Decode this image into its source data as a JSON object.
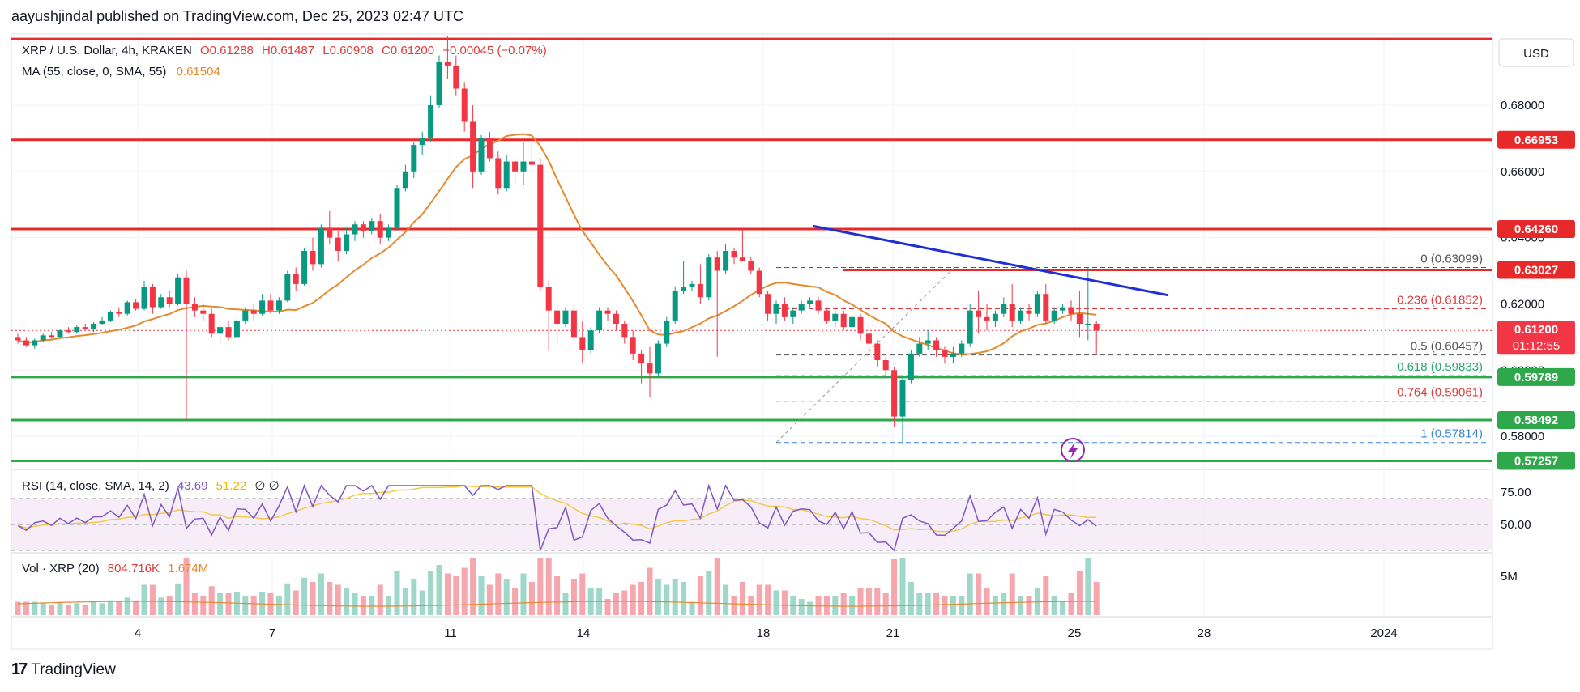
{
  "header": {
    "text": "aayushjindal published on TradingView.com, Dec 25, 2023 02:47 UTC"
  },
  "footer": {
    "brand": "TradingView"
  },
  "legend": {
    "symbol": "XRP / U.S. Dollar, 4h, KRAKEN",
    "o": "O0.61288",
    "h": "H0.61487",
    "l": "L0.60908",
    "c": "C0.61200",
    "change": "−0.00045 (−0.07%)",
    "ma_label": "MA (55, close, 0, SMA, 55)",
    "ma_value": "0.61504",
    "rsi_label": "RSI (14, close, SMA, 14, 2)",
    "rsi_value": "43.69",
    "rsi_sma": "51.22",
    "rsi_extra": "∅ ∅",
    "vol_label": "Vol · XRP (20)",
    "vol_value": "804.716K",
    "vol_ma": "1.674M"
  },
  "currency_label": "USD",
  "colors": {
    "up": "#089981",
    "down": "#f23645",
    "ma": "#e58a2f",
    "trend": "#1f2fd6",
    "resistance": "#e82929",
    "support": "#2ea84a",
    "rsi": "#7e57c2",
    "rsi_sma": "#f2c94c",
    "fib": "#e03a3a",
    "fib_green": "#2aa96b",
    "fib_blue": "#3d86d6"
  },
  "chart_data": {
    "type": "candlestick",
    "x_tick_labels": [
      "4",
      "7",
      "11",
      "14",
      "18",
      "21",
      "25",
      "28",
      "2024"
    ],
    "y_tick_labels": [
      "0.68000",
      "0.66000",
      "0.64000",
      "0.62000",
      "0.60000",
      "0.58000"
    ],
    "ylim": [
      0.5705,
      0.7015
    ],
    "last_price": "0.61200",
    "countdown": "01:12:55",
    "horizontal_levels": [
      {
        "value": 0.7,
        "label": "",
        "kind": "resistance"
      },
      {
        "value": 0.66953,
        "label": "0.66953",
        "kind": "resistance"
      },
      {
        "value": 0.6426,
        "label": "0.64260",
        "kind": "resistance"
      },
      {
        "value": 0.63027,
        "label": "0.63027",
        "kind": "resistance"
      },
      {
        "value": 0.59789,
        "label": "0.59789",
        "kind": "support"
      },
      {
        "value": 0.58492,
        "label": "0.58492",
        "kind": "support"
      },
      {
        "value": 0.57257,
        "label": "0.57257",
        "kind": "support"
      }
    ],
    "fib_levels": [
      {
        "ratio": "0",
        "value": 0.63099,
        "label": "0 (0.63099)"
      },
      {
        "ratio": "0.236",
        "value": 0.61852,
        "label": "0.236 (0.61852)"
      },
      {
        "ratio": "0.5",
        "value": 0.60457,
        "label": "0.5 (0.60457)"
      },
      {
        "ratio": "0.618",
        "value": 0.59833,
        "label": "0.618 (0.59833)"
      },
      {
        "ratio": "0.764",
        "value": 0.59061,
        "label": "0.764 (0.59061)"
      },
      {
        "ratio": "1",
        "value": 0.57814,
        "label": "1 (0.57814)"
      }
    ],
    "trendline": {
      "from": {
        "bar": 104,
        "price": 0.6435
      },
      "to": {
        "bar": 192,
        "price": 0.6226
      }
    },
    "candles": [
      [
        0.61,
        0.611,
        0.608,
        0.609
      ],
      [
        0.609,
        0.61,
        0.607,
        0.6075
      ],
      [
        0.6075,
        0.6095,
        0.6065,
        0.609
      ],
      [
        0.609,
        0.611,
        0.6085,
        0.6105
      ],
      [
        0.6105,
        0.6115,
        0.6095,
        0.61
      ],
      [
        0.61,
        0.6125,
        0.6095,
        0.612
      ],
      [
        0.612,
        0.613,
        0.611,
        0.6115
      ],
      [
        0.6115,
        0.6135,
        0.611,
        0.613
      ],
      [
        0.613,
        0.614,
        0.612,
        0.6125
      ],
      [
        0.6125,
        0.6145,
        0.6115,
        0.614
      ],
      [
        0.614,
        0.616,
        0.6135,
        0.615
      ],
      [
        0.615,
        0.618,
        0.6145,
        0.6175
      ],
      [
        0.6175,
        0.619,
        0.616,
        0.617
      ],
      [
        0.617,
        0.621,
        0.6165,
        0.6205
      ],
      [
        0.6205,
        0.6215,
        0.618,
        0.6185
      ],
      [
        0.6185,
        0.627,
        0.618,
        0.625
      ],
      [
        0.625,
        0.626,
        0.617,
        0.619
      ],
      [
        0.619,
        0.623,
        0.6185,
        0.622
      ],
      [
        0.622,
        0.624,
        0.619,
        0.62
      ],
      [
        0.62,
        0.629,
        0.6195,
        0.628
      ],
      [
        0.628,
        0.63,
        0.585,
        0.62
      ],
      [
        0.62,
        0.622,
        0.616,
        0.618
      ],
      [
        0.618,
        0.62,
        0.615,
        0.617
      ],
      [
        0.617,
        0.6185,
        0.61,
        0.611
      ],
      [
        0.611,
        0.614,
        0.608,
        0.613
      ],
      [
        0.613,
        0.615,
        0.609,
        0.61
      ],
      [
        0.61,
        0.616,
        0.6095,
        0.615
      ],
      [
        0.615,
        0.619,
        0.614,
        0.618
      ],
      [
        0.618,
        0.62,
        0.615,
        0.617
      ],
      [
        0.617,
        0.623,
        0.6165,
        0.621
      ],
      [
        0.621,
        0.623,
        0.617,
        0.618
      ],
      [
        0.618,
        0.622,
        0.617,
        0.621
      ],
      [
        0.621,
        0.63,
        0.6205,
        0.629
      ],
      [
        0.629,
        0.631,
        0.624,
        0.626
      ],
      [
        0.626,
        0.637,
        0.6255,
        0.636
      ],
      [
        0.636,
        0.64,
        0.63,
        0.632
      ],
      [
        0.632,
        0.644,
        0.631,
        0.643
      ],
      [
        0.643,
        0.648,
        0.638,
        0.64
      ],
      [
        0.64,
        0.642,
        0.633,
        0.636
      ],
      [
        0.636,
        0.643,
        0.635,
        0.641
      ],
      [
        0.641,
        0.645,
        0.639,
        0.644
      ],
      [
        0.644,
        0.645,
        0.64,
        0.642
      ],
      [
        0.642,
        0.646,
        0.641,
        0.645
      ],
      [
        0.645,
        0.647,
        0.638,
        0.64
      ],
      [
        0.64,
        0.644,
        0.639,
        0.643
      ],
      [
        0.643,
        0.656,
        0.642,
        0.655
      ],
      [
        0.655,
        0.662,
        0.654,
        0.66
      ],
      [
        0.66,
        0.669,
        0.658,
        0.668
      ],
      [
        0.668,
        0.672,
        0.665,
        0.67
      ],
      [
        0.67,
        0.683,
        0.669,
        0.68
      ],
      [
        0.68,
        0.695,
        0.679,
        0.693
      ],
      [
        0.693,
        0.701,
        0.688,
        0.692
      ],
      [
        0.692,
        0.695,
        0.683,
        0.685
      ],
      [
        0.685,
        0.687,
        0.672,
        0.675
      ],
      [
        0.675,
        0.68,
        0.655,
        0.66
      ],
      [
        0.66,
        0.671,
        0.659,
        0.67
      ],
      [
        0.67,
        0.672,
        0.663,
        0.664
      ],
      [
        0.664,
        0.666,
        0.653,
        0.655
      ],
      [
        0.655,
        0.665,
        0.654,
        0.663
      ],
      [
        0.663,
        0.664,
        0.656,
        0.66
      ],
      [
        0.66,
        0.669,
        0.656,
        0.663
      ],
      [
        0.663,
        0.67,
        0.66,
        0.662
      ],
      [
        0.662,
        0.664,
        0.624,
        0.625
      ],
      [
        0.625,
        0.627,
        0.606,
        0.618
      ],
      [
        0.618,
        0.62,
        0.608,
        0.614
      ],
      [
        0.614,
        0.619,
        0.613,
        0.618
      ],
      [
        0.618,
        0.62,
        0.609,
        0.61
      ],
      [
        0.61,
        0.615,
        0.602,
        0.606
      ],
      [
        0.606,
        0.613,
        0.605,
        0.612
      ],
      [
        0.612,
        0.619,
        0.611,
        0.618
      ],
      [
        0.618,
        0.619,
        0.615,
        0.617
      ],
      [
        0.617,
        0.618,
        0.612,
        0.614
      ],
      [
        0.614,
        0.615,
        0.608,
        0.61
      ],
      [
        0.61,
        0.612,
        0.603,
        0.605
      ],
      [
        0.605,
        0.606,
        0.596,
        0.602
      ],
      [
        0.602,
        0.607,
        0.592,
        0.599
      ],
      [
        0.599,
        0.609,
        0.598,
        0.608
      ],
      [
        0.608,
        0.616,
        0.607,
        0.615
      ],
      [
        0.615,
        0.625,
        0.614,
        0.624
      ],
      [
        0.624,
        0.633,
        0.623,
        0.625
      ],
      [
        0.625,
        0.627,
        0.624,
        0.626
      ],
      [
        0.626,
        0.632,
        0.62,
        0.622
      ],
      [
        0.622,
        0.635,
        0.621,
        0.634
      ],
      [
        0.634,
        0.636,
        0.604,
        0.63
      ],
      [
        0.63,
        0.638,
        0.629,
        0.636
      ],
      [
        0.636,
        0.637,
        0.632,
        0.634
      ],
      [
        0.634,
        0.643,
        0.633,
        0.633
      ],
      [
        0.633,
        0.634,
        0.629,
        0.63
      ],
      [
        0.63,
        0.631,
        0.622,
        0.623
      ],
      [
        0.623,
        0.624,
        0.615,
        0.617
      ],
      [
        0.617,
        0.621,
        0.614,
        0.62
      ],
      [
        0.62,
        0.622,
        0.615,
        0.616
      ],
      [
        0.616,
        0.619,
        0.614,
        0.618
      ],
      [
        0.618,
        0.621,
        0.617,
        0.62
      ],
      [
        0.62,
        0.622,
        0.619,
        0.621
      ],
      [
        0.621,
        0.622,
        0.617,
        0.618
      ],
      [
        0.618,
        0.619,
        0.614,
        0.615
      ],
      [
        0.615,
        0.618,
        0.613,
        0.617
      ],
      [
        0.617,
        0.618,
        0.612,
        0.613
      ],
      [
        0.613,
        0.617,
        0.612,
        0.616
      ],
      [
        0.616,
        0.617,
        0.609,
        0.611
      ],
      [
        0.611,
        0.614,
        0.606,
        0.608
      ],
      [
        0.608,
        0.609,
        0.601,
        0.603
      ],
      [
        0.603,
        0.604,
        0.598,
        0.6
      ],
      [
        0.6,
        0.601,
        0.583,
        0.586
      ],
      [
        0.586,
        0.598,
        0.5781,
        0.597
      ],
      [
        0.597,
        0.606,
        0.596,
        0.605
      ],
      [
        0.605,
        0.61,
        0.604,
        0.608
      ],
      [
        0.608,
        0.612,
        0.606,
        0.609
      ],
      [
        0.609,
        0.61,
        0.604,
        0.606
      ],
      [
        0.606,
        0.607,
        0.602,
        0.604
      ],
      [
        0.604,
        0.607,
        0.602,
        0.605
      ],
      [
        0.605,
        0.609,
        0.604,
        0.608
      ],
      [
        0.608,
        0.62,
        0.607,
        0.618
      ],
      [
        0.618,
        0.624,
        0.611,
        0.616
      ],
      [
        0.616,
        0.62,
        0.612,
        0.615
      ],
      [
        0.615,
        0.618,
        0.613,
        0.617
      ],
      [
        0.617,
        0.622,
        0.616,
        0.62
      ],
      [
        0.62,
        0.626,
        0.613,
        0.615
      ],
      [
        0.615,
        0.619,
        0.614,
        0.618
      ],
      [
        0.618,
        0.62,
        0.615,
        0.617
      ],
      [
        0.617,
        0.624,
        0.616,
        0.623
      ],
      [
        0.623,
        0.626,
        0.614,
        0.615
      ],
      [
        0.615,
        0.619,
        0.614,
        0.618
      ],
      [
        0.618,
        0.62,
        0.617,
        0.619
      ],
      [
        0.619,
        0.621,
        0.615,
        0.617
      ],
      [
        0.617,
        0.624,
        0.61,
        0.614
      ],
      [
        0.614,
        0.631,
        0.609,
        0.614
      ],
      [
        0.614,
        0.615,
        0.605,
        0.612
      ]
    ],
    "candle_bar_spacing": 1.0
  }
}
